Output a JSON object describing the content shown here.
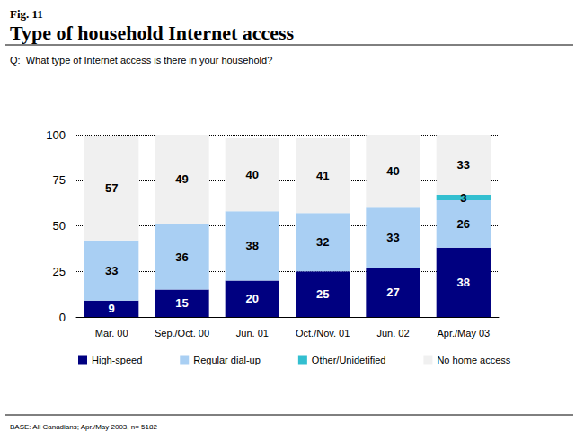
{
  "chart_data": {
    "type": "bar",
    "figure_label": "Fig. 11",
    "title": "Type of household Internet access",
    "subtitle": "Q:  What type of Internet access is there in your household?",
    "footnote": "BASE: All Canadians; Apr./May 2003, n= 5182",
    "categories": [
      "Mar. 00",
      "Sep./Oct. 00",
      "Jun. 01",
      "Oct./Nov. 01",
      "Jun. 02",
      "Apr./May 03"
    ],
    "series": [
      {
        "name": "High-speed",
        "color": "#000080",
        "values": [
          9,
          15,
          20,
          25,
          27,
          38
        ]
      },
      {
        "name": "Regular dial-up",
        "color": "#a9cff3",
        "values": [
          33,
          36,
          38,
          32,
          33,
          26
        ]
      },
      {
        "name": "Other/Unidetified",
        "color": "#33bfd0",
        "values": [
          null,
          null,
          null,
          null,
          null,
          3
        ]
      },
      {
        "name": "No home access",
        "color": "#f0f0f0",
        "values": [
          57,
          49,
          40,
          41,
          40,
          33
        ]
      }
    ],
    "ylim": [
      0,
      100
    ],
    "yticks": [
      0,
      25,
      50,
      75,
      100
    ],
    "stacked": true,
    "data_labels": true,
    "grid": true,
    "legend": "bottom"
  }
}
